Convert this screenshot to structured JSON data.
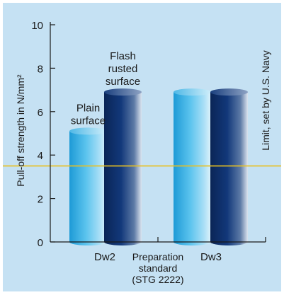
{
  "chart_data": {
    "type": "bar",
    "ylabel": "Pull-off strength in N/mm²",
    "ylim": [
      0,
      10
    ],
    "yticks": [
      0,
      2,
      4,
      6,
      8,
      10
    ],
    "groups": [
      {
        "name": "Dw2",
        "bars": [
          {
            "label": [
              "Plain",
              "surface"
            ],
            "value": 5.1,
            "color": "light-blue"
          },
          {
            "label": [
              "Flash",
              "rusted",
              "surface"
            ],
            "value": 6.9,
            "color": "dark-navy"
          }
        ]
      },
      {
        "name": "Dw3",
        "bars": [
          {
            "label": [],
            "value": 6.9,
            "color": "light-blue"
          },
          {
            "label": [],
            "value": 6.9,
            "color": "dark-navy"
          }
        ]
      }
    ],
    "xaxis_title": [
      "Preparation",
      "standard",
      "(STG 2222)"
    ],
    "reference_line": {
      "value": 3.5,
      "label": "Limit, set by U.S. Navy",
      "color": "#e8c020"
    }
  },
  "colors": {
    "background": "#c5e1f3",
    "light_blue": "#29a8e0",
    "dark_navy": "#0e2f6a",
    "limit_line": "#e8c020"
  }
}
